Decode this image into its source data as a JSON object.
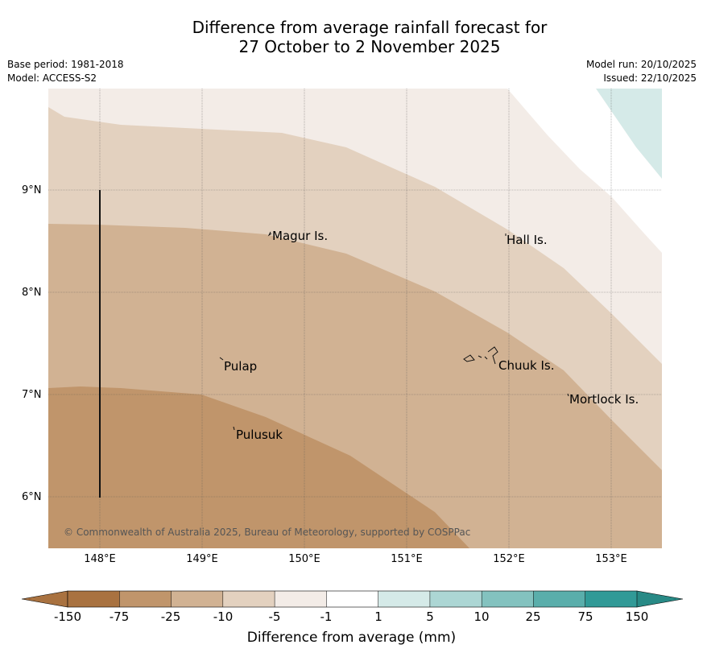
{
  "header": {
    "title_line1": "Difference from average rainfall forecast for",
    "title_line2": "27 October to 2 November 2025",
    "base_period": "Base period: 1981-2018",
    "model": "Model: ACCESS-S2",
    "model_run": "Model run: 20/10/2025",
    "issued": "Issued: 22/10/2025"
  },
  "map": {
    "lat_labels": [
      "9°N",
      "8°N",
      "7°N",
      "6°N"
    ],
    "lon_labels": [
      "148°E",
      "149°E",
      "150°E",
      "151°E",
      "152°E",
      "153°E"
    ],
    "places": [
      "Magur Is.",
      "Hall Is.",
      "Pulap",
      "Chuuk Is.",
      "Mortlock Is.",
      "Pulusuk"
    ],
    "copyright": "© Commonwealth of Australia 2025, Bureau of Meteorology, supported by COSPPac"
  },
  "colorbar": {
    "label": "Difference from average (mm)",
    "ticks": [
      "-150",
      "-75",
      "-25",
      "-10",
      "-5",
      "-1",
      "1",
      "5",
      "10",
      "25",
      "75",
      "150"
    ],
    "colors": [
      "#a97240",
      "#c0956b",
      "#d1b293",
      "#e3d1bf",
      "#f3ece7",
      "#ffffff",
      "#d5eae8",
      "#acd6d4",
      "#83c2bf",
      "#5aaeab",
      "#319a97",
      "#288a86"
    ]
  }
}
